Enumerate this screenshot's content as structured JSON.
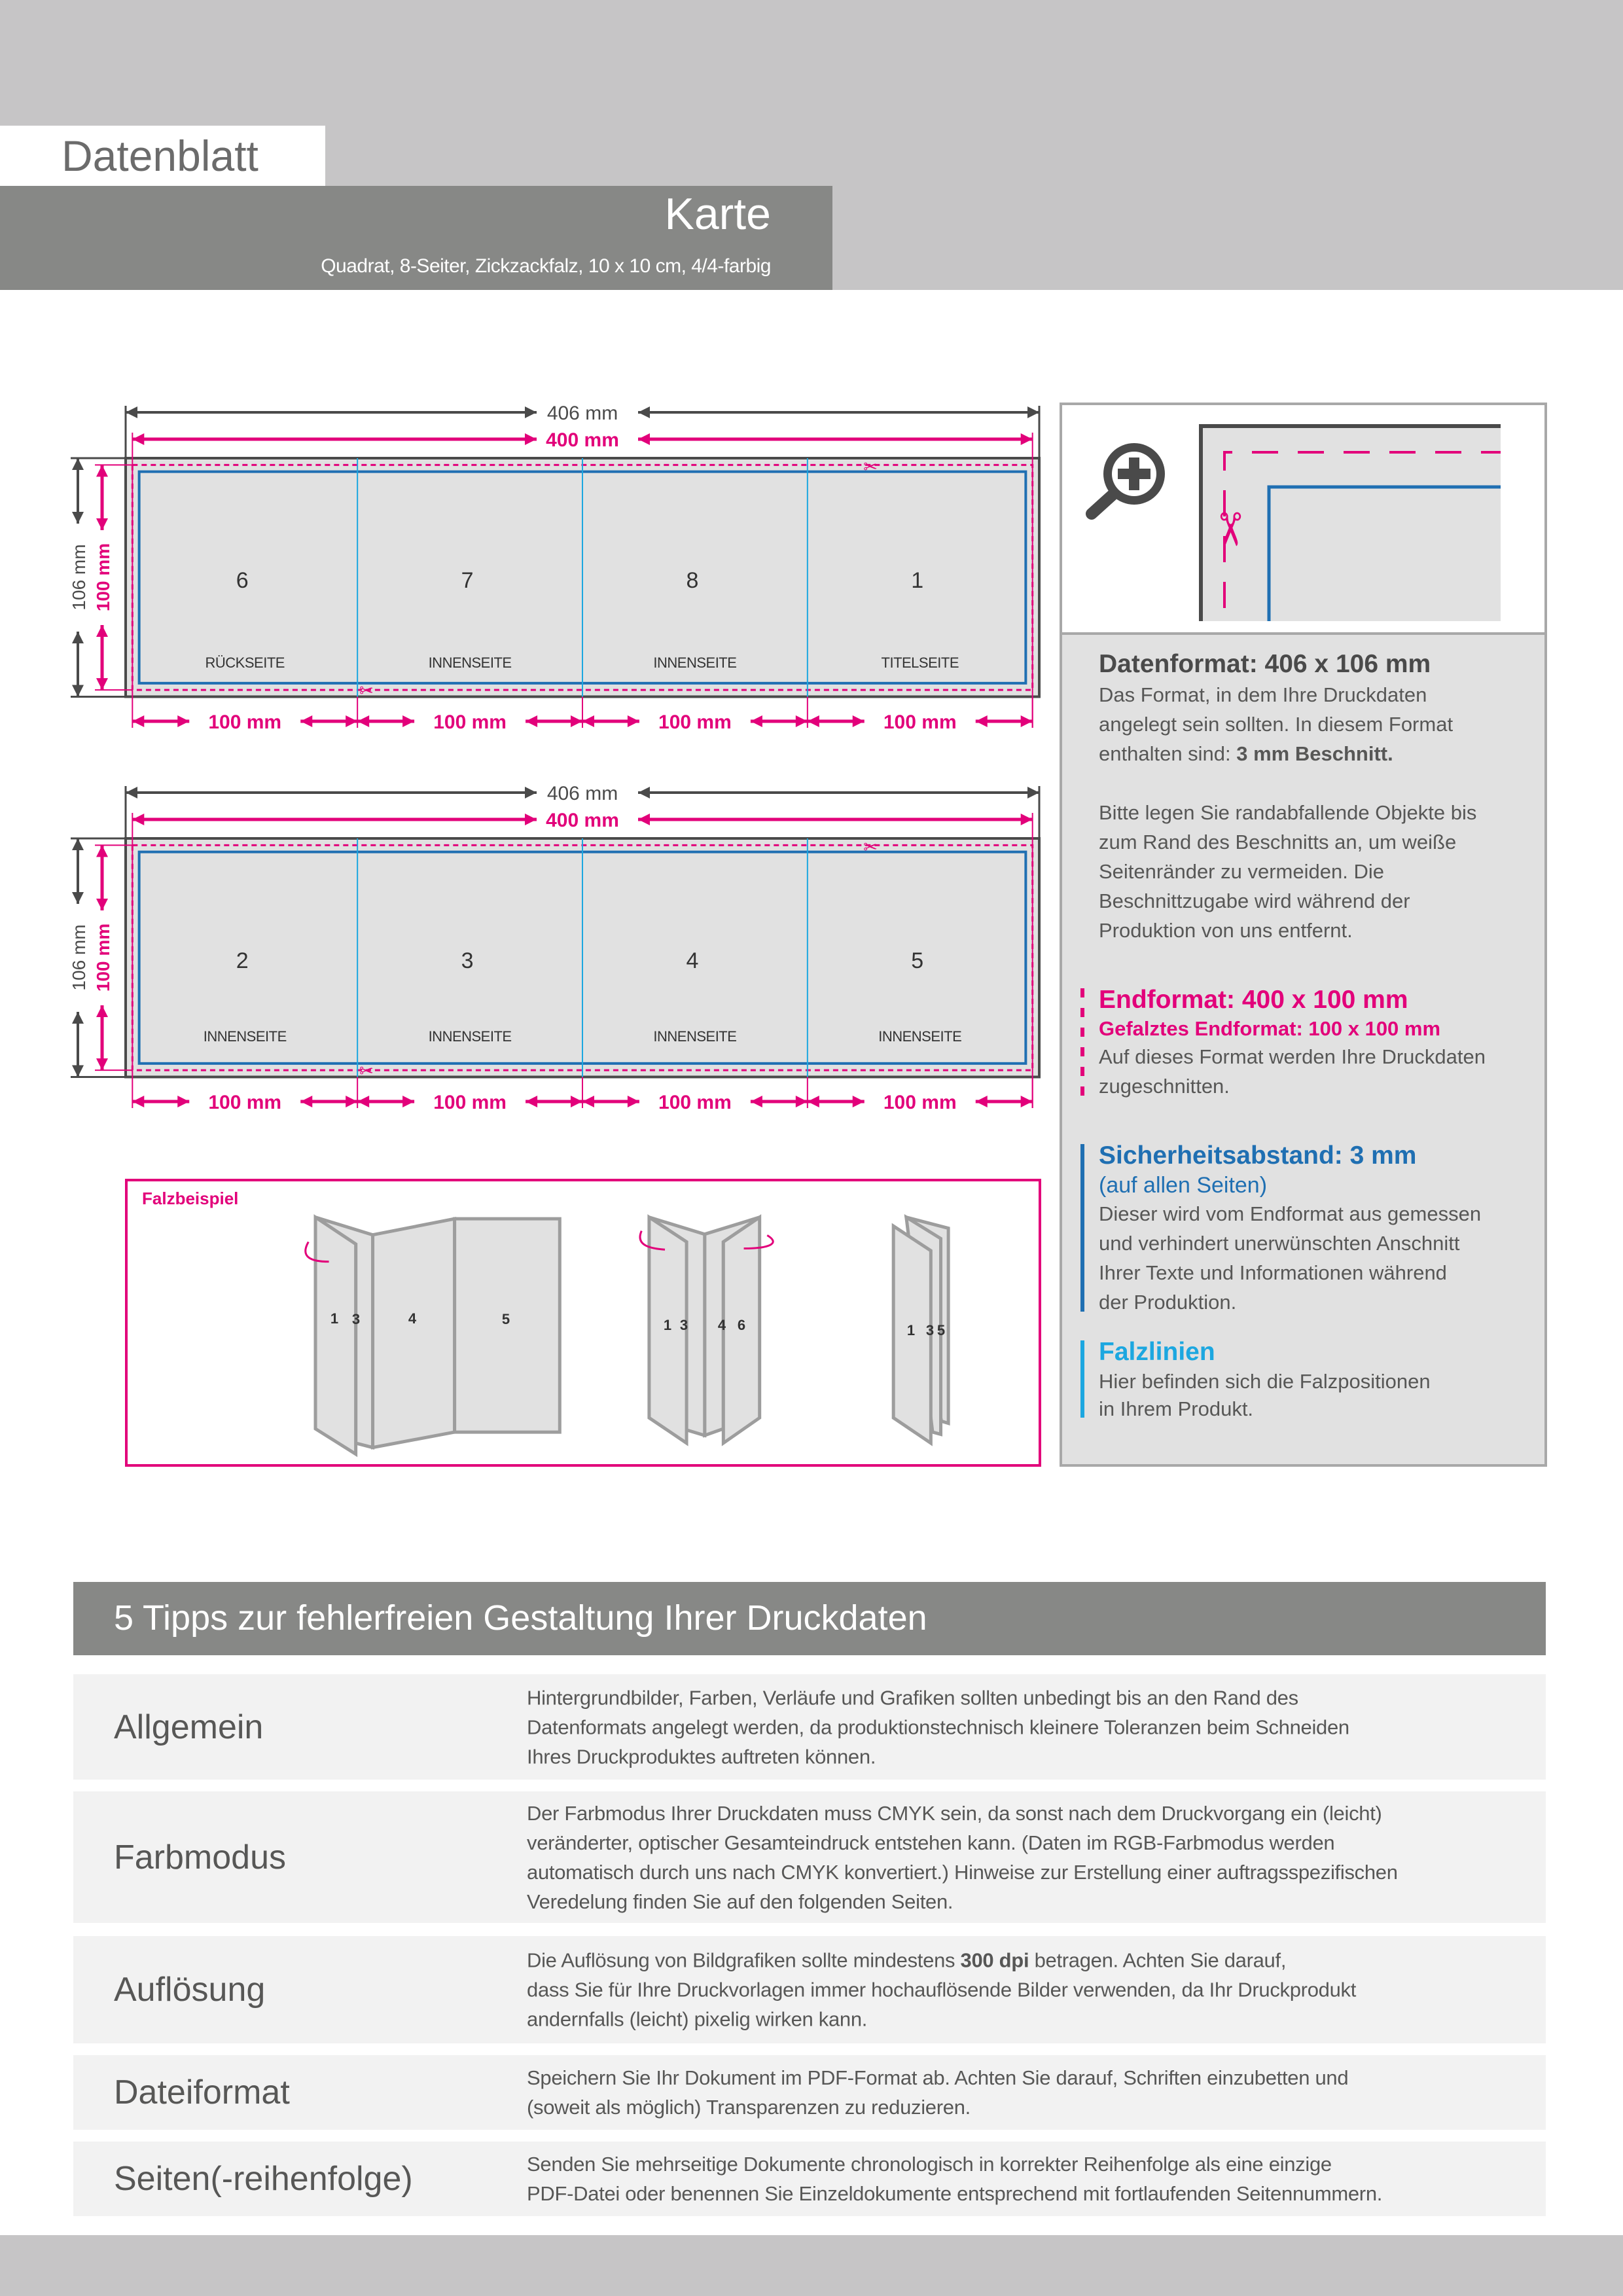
{
  "header": {
    "doc_label": "Datenblatt",
    "product": "Karte",
    "specs": "Quadrat, 8-Seiter, Zickzackfalz, 10 x 10 cm, 4/4-farbig"
  },
  "colors": {
    "magenta": "#e2007a",
    "safety_blue": "#1f6fb2",
    "fold_cyan": "#1ca7e0",
    "dim_gray": "#4a4a4a",
    "panel_fill": "#e1e1e1",
    "band_gray": "#c6c5c6",
    "bar_gray": "#878886"
  },
  "diagrams": [
    {
      "width_bleed": "406 mm",
      "width_final": "400 mm",
      "height_bleed": "106 mm",
      "height_final": "100 mm",
      "panel_widths": [
        "100 mm",
        "100 mm",
        "100 mm",
        "100 mm"
      ],
      "panels": [
        {
          "number": "6",
          "label": "RÜCKSEITE"
        },
        {
          "number": "7",
          "label": "INNENSEITE"
        },
        {
          "number": "8",
          "label": "INNENSEITE"
        },
        {
          "number": "1",
          "label": "TITELSEITE"
        }
      ]
    },
    {
      "width_bleed": "406 mm",
      "width_final": "400 mm",
      "height_bleed": "106 mm",
      "height_final": "100 mm",
      "panel_widths": [
        "100 mm",
        "100 mm",
        "100 mm",
        "100 mm"
      ],
      "panels": [
        {
          "number": "2",
          "label": "INNENSEITE"
        },
        {
          "number": "3",
          "label": "INNENSEITE"
        },
        {
          "number": "4",
          "label": "INNENSEITE"
        },
        {
          "number": "5",
          "label": "INNENSEITE"
        }
      ]
    }
  ],
  "fold_example": {
    "title": "Falzbeispiel",
    "figures": [
      [
        "1",
        "3",
        "4",
        "5"
      ],
      [
        "1",
        "3",
        "4",
        "6"
      ],
      [
        "1",
        "3",
        "5"
      ]
    ]
  },
  "legend": {
    "datenformat": {
      "title": "Datenformat: 406 x 106 mm",
      "lines": [
        "Das Format, in dem Ihre Druckdaten",
        "angelegt sein sollten. In diesem Format",
        {
          "pre": "enthalten sind: ",
          "bold": "3 mm Beschnitt.",
          "post": ""
        }
      ],
      "lines2": [
        "Bitte legen Sie randabfallende Objekte bis",
        "zum Rand des Beschnitts an, um weiße",
        "Seitenränder zu vermeiden. Die",
        "Beschnittzugabe wird während der",
        "Produktion von uns entfernt."
      ]
    },
    "endformat": {
      "title": "Endformat: 400 x 100 mm",
      "subtitle": "Gefalztes Endformat: 100 x 100 mm",
      "lines": [
        "Auf dieses Format werden Ihre Druckdaten",
        "zugeschnitten."
      ]
    },
    "sicherheit": {
      "title": "Sicherheitsabstand: 3 mm",
      "subtitle": "(auf allen Seiten)",
      "lines": [
        "Dieser wird vom Endformat aus gemessen",
        "und verhindert unerwünschten Anschnitt",
        "Ihrer Texte und Informationen während",
        "der Produktion."
      ]
    },
    "falzlinien": {
      "title": "Falzlinien",
      "lines": [
        "Hier befinden sich die Falzpositionen",
        "in Ihrem Produkt."
      ]
    }
  },
  "tips": {
    "title": "5 Tipps zur fehlerfreien Gestaltung Ihrer Druckdaten",
    "rows": [
      {
        "label": "Allgemein",
        "lines": [
          "Hintergrundbilder, Farben, Verläufe und Grafiken sollten unbedingt bis an den Rand des",
          "Datenformats angelegt werden, da produktionstechnisch kleinere Toleranzen beim Schneiden",
          "Ihres Druckproduktes auftreten können."
        ]
      },
      {
        "label": "Farbmodus",
        "lines": [
          "Der Farbmodus Ihrer Druckdaten muss CMYK sein, da sonst nach dem Druckvorgang ein (leicht)",
          "veränderter, optischer Gesamteindruck entstehen kann. (Daten im RGB-Farbmodus werden",
          "automatisch durch uns nach CMYK konvertiert.) Hinweise zur Erstellung einer auftragsspezifischen",
          "Veredelung finden Sie  auf den folgenden Seiten."
        ]
      },
      {
        "label": "Auflösung",
        "lines": [
          {
            "pre": "Die Auflösung von Bildgrafiken sollte mindestens ",
            "bold": "300 dpi",
            "post": " betragen. Achten Sie darauf,"
          },
          "dass Sie für Ihre Druckvorlagen immer hochauflösende Bilder verwenden, da Ihr Druckprodukt",
          "andernfalls (leicht) pixelig wirken kann."
        ]
      },
      {
        "label": "Dateiformat",
        "lines": [
          "Speichern Sie Ihr Dokument im PDF-Format ab. Achten Sie darauf, Schriften einzubetten und",
          "(soweit als möglich) Transparenzen zu reduzieren."
        ]
      },
      {
        "label": "Seiten(-reihenfolge)",
        "lines": [
          "Senden Sie mehrseitige Dokumente chronologisch in korrekter Reihenfolge als eine einzige",
          "PDF-Datei oder benennen Sie Einzeldokumente entsprechend mit fortlaufenden Seitennummern."
        ]
      }
    ]
  }
}
